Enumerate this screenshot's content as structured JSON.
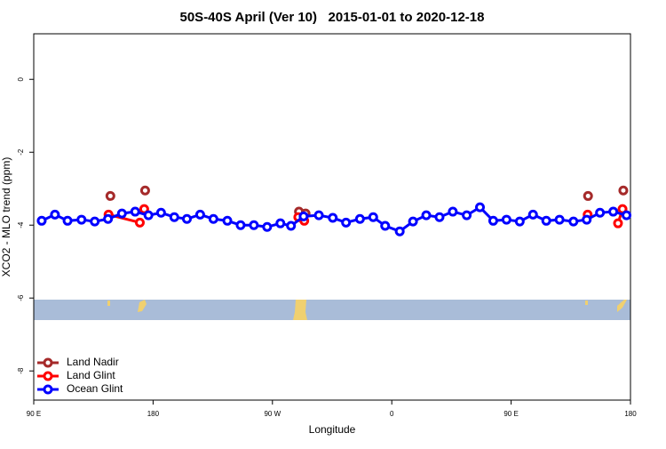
{
  "chart_data": {
    "type": "line",
    "title": "50S-40S April (Ver 10)   2015-01-01 to 2020-12-18",
    "x_label": "Longitude",
    "y_label": "XCO2 - MLO trend (ppm)",
    "xlim": [
      90,
      540
    ],
    "xticks": [
      {
        "value": 90,
        "label": "90 E"
      },
      180,
      {
        "value": 270,
        "label": "90 W"
      },
      {
        "value": 360,
        "label": "0"
      },
      {
        "value": 450,
        "label": "90 E"
      },
      {
        "value": 540,
        "label": "180"
      }
    ],
    "ylim": [
      -8.8,
      1.25
    ],
    "yticks": [
      0,
      -2,
      -4,
      -6,
      -8
    ],
    "legend": "bottom-left",
    "series": [
      {
        "name": "Land Nadir",
        "color": "#a52a2a",
        "x": [
          147.8,
          null,
          174,
          null,
          290,
          null,
          295,
          null,
          508,
          null,
          534.6
        ],
        "values": [
          -3.2,
          null,
          -3.05,
          null,
          -3.63,
          null,
          -3.68,
          null,
          -3.2,
          null,
          -3.05
        ]
      },
      {
        "name": "Land Glint",
        "color": "#ff0000",
        "x": [
          146.4,
          170,
          null,
          173.3,
          null,
          289.5,
          294,
          null,
          507.7,
          null,
          530.6,
          534
        ],
        "values": [
          -3.71,
          -3.93,
          null,
          -3.56,
          null,
          -3.78,
          -3.88,
          null,
          -3.71,
          null,
          -3.95,
          -3.56
        ]
      },
      {
        "name": "Ocean Glint",
        "color": "#0000ff",
        "x": [
          96,
          106,
          115.5,
          126,
          136,
          146,
          156.5,
          166.5,
          176.5,
          186,
          196,
          205.5,
          215.5,
          225.5,
          236,
          246,
          256,
          266,
          276,
          284,
          293.5,
          305,
          315.5,
          325.5,
          336,
          346,
          355,
          366,
          376,
          386,
          396,
          406,
          416.5,
          426.5,
          436.5,
          446.5,
          456.5,
          466.5,
          476.5,
          486.5,
          497,
          507,
          517,
          527,
          537
        ],
        "values": [
          -3.88,
          -3.71,
          -3.88,
          -3.85,
          -3.9,
          -3.83,
          -3.68,
          -3.63,
          -3.73,
          -3.66,
          -3.78,
          -3.83,
          -3.71,
          -3.83,
          -3.88,
          -4.0,
          -4.0,
          -4.05,
          -3.95,
          -4.02,
          -3.76,
          -3.73,
          -3.8,
          -3.93,
          -3.83,
          -3.78,
          -4.02,
          -4.17,
          -3.9,
          -3.73,
          -3.78,
          -3.63,
          -3.73,
          -3.51,
          -3.88,
          -3.85,
          -3.9,
          -3.71,
          -3.88,
          -3.85,
          -3.9,
          -3.85,
          -3.66,
          -3.63,
          -3.73
        ]
      }
    ]
  }
}
